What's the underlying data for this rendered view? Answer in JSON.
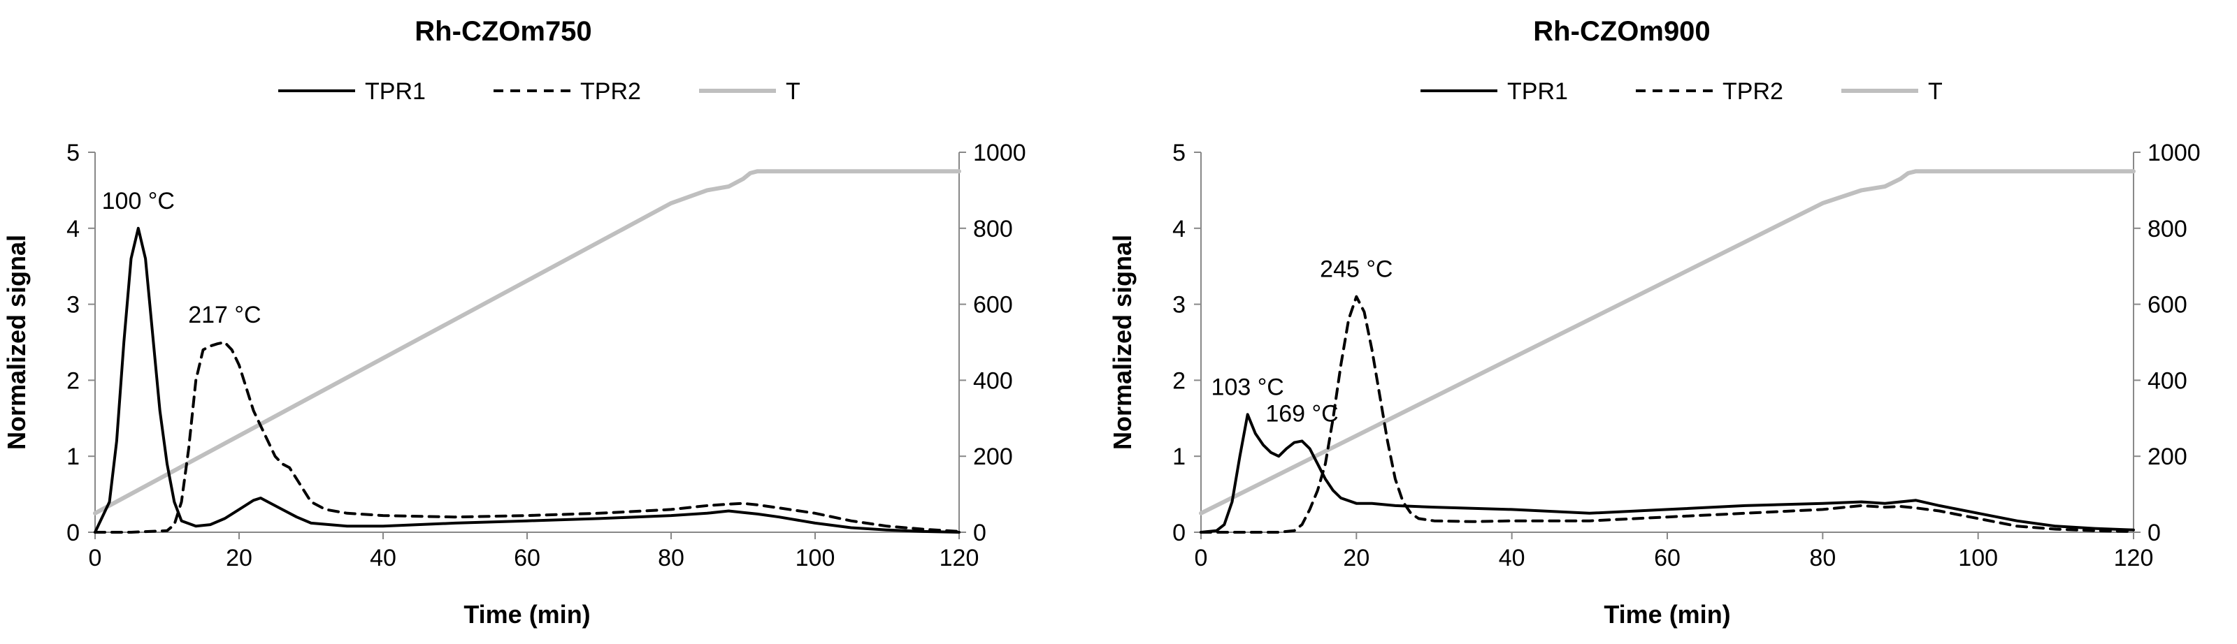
{
  "chart_data": [
    {
      "type": "line",
      "title": "Rh-CZOm750",
      "xlabel": "Time (min)",
      "ylabel": "Normalized signal",
      "y2label": "",
      "xlim": [
        0,
        120
      ],
      "ylim": [
        0,
        5
      ],
      "y2lim": [
        0,
        1000
      ],
      "xticks": [
        "0",
        "20",
        "40",
        "60",
        "80",
        "100",
        "120"
      ],
      "yticks": [
        "0",
        "1",
        "2",
        "3",
        "4",
        "5"
      ],
      "y2ticks": [
        "0",
        "200",
        "400",
        "600",
        "800",
        "1000"
      ],
      "legend": {
        "position": "top",
        "entries": [
          "TPR1",
          "TPR2",
          "T"
        ]
      },
      "series": [
        {
          "name": "TPR1",
          "axis": "left",
          "style": "solid",
          "color": "#000000",
          "x": [
            0,
            2,
            3,
            4,
            5,
            6,
            7,
            8,
            9,
            10,
            11,
            12,
            14,
            16,
            18,
            20,
            22,
            23,
            24,
            26,
            28,
            30,
            35,
            40,
            50,
            60,
            70,
            80,
            85,
            88,
            90,
            92,
            95,
            100,
            105,
            110,
            115,
            120
          ],
          "values": [
            0.0,
            0.4,
            1.2,
            2.5,
            3.6,
            4.0,
            3.6,
            2.6,
            1.6,
            0.9,
            0.4,
            0.15,
            0.08,
            0.1,
            0.18,
            0.3,
            0.42,
            0.45,
            0.4,
            0.3,
            0.2,
            0.12,
            0.08,
            0.08,
            0.12,
            0.15,
            0.18,
            0.22,
            0.25,
            0.28,
            0.26,
            0.24,
            0.2,
            0.12,
            0.06,
            0.03,
            0.01,
            0.0
          ]
        },
        {
          "name": "TPR2",
          "axis": "left",
          "style": "dashed",
          "color": "#000000",
          "x": [
            0,
            5,
            10,
            11,
            12,
            13,
            14,
            15,
            16,
            17,
            18,
            19,
            20,
            21,
            22,
            23,
            24,
            25,
            26,
            27,
            28,
            29,
            30,
            32,
            35,
            40,
            50,
            60,
            70,
            80,
            85,
            88,
            90,
            92,
            95,
            100,
            105,
            110,
            115,
            120
          ],
          "values": [
            0.0,
            0.0,
            0.02,
            0.1,
            0.4,
            1.1,
            2.0,
            2.4,
            2.45,
            2.48,
            2.5,
            2.4,
            2.2,
            1.9,
            1.6,
            1.4,
            1.2,
            1.0,
            0.9,
            0.85,
            0.7,
            0.55,
            0.4,
            0.3,
            0.25,
            0.22,
            0.2,
            0.22,
            0.25,
            0.3,
            0.35,
            0.37,
            0.38,
            0.36,
            0.32,
            0.25,
            0.15,
            0.08,
            0.04,
            0.01
          ]
        },
        {
          "name": "T",
          "axis": "right",
          "style": "solid",
          "color": "#BFBFBF",
          "x": [
            0,
            10,
            20,
            30,
            40,
            50,
            60,
            70,
            80,
            85,
            88,
            90,
            91,
            92,
            95,
            100,
            110,
            120
          ],
          "values": [
            50,
            152,
            254,
            356,
            458,
            560,
            662,
            764,
            866,
            900,
            910,
            930,
            945,
            950,
            950,
            950,
            950,
            950
          ]
        }
      ],
      "annotations": [
        {
          "text": "100 °C",
          "x": 6,
          "y": 4.0
        },
        {
          "text": "217 °C",
          "x": 18,
          "y": 2.5
        }
      ]
    },
    {
      "type": "line",
      "title": "Rh-CZOm900",
      "xlabel": "Time (min)",
      "ylabel": "Normalized signal",
      "y2label": "",
      "xlim": [
        0,
        120
      ],
      "ylim": [
        0,
        5
      ],
      "y2lim": [
        0,
        1000
      ],
      "xticks": [
        "0",
        "20",
        "40",
        "60",
        "80",
        "100",
        "120"
      ],
      "yticks": [
        "0",
        "1",
        "2",
        "3",
        "4",
        "5"
      ],
      "y2ticks": [
        "0",
        "200",
        "400",
        "600",
        "800",
        "1000"
      ],
      "legend": {
        "position": "top",
        "entries": [
          "TPR1",
          "TPR2",
          "T"
        ]
      },
      "series": [
        {
          "name": "TPR1",
          "axis": "left",
          "style": "solid",
          "color": "#000000",
          "x": [
            0,
            2,
            3,
            4,
            5,
            6,
            7,
            8,
            9,
            10,
            11,
            12,
            13,
            14,
            15,
            16,
            17,
            18,
            20,
            22,
            25,
            30,
            40,
            50,
            60,
            70,
            80,
            85,
            88,
            90,
            92,
            95,
            100,
            105,
            110,
            115,
            120
          ],
          "values": [
            0.0,
            0.02,
            0.1,
            0.4,
            1.0,
            1.55,
            1.3,
            1.15,
            1.05,
            1.0,
            1.1,
            1.18,
            1.2,
            1.1,
            0.9,
            0.7,
            0.55,
            0.45,
            0.38,
            0.38,
            0.35,
            0.33,
            0.3,
            0.25,
            0.3,
            0.35,
            0.38,
            0.4,
            0.38,
            0.4,
            0.42,
            0.35,
            0.25,
            0.15,
            0.08,
            0.05,
            0.03
          ]
        },
        {
          "name": "TPR2",
          "axis": "left",
          "style": "dashed",
          "color": "#000000",
          "x": [
            0,
            10,
            12,
            13,
            14,
            15,
            16,
            17,
            18,
            19,
            20,
            21,
            22,
            23,
            24,
            25,
            26,
            27,
            28,
            30,
            35,
            40,
            50,
            60,
            70,
            80,
            85,
            88,
            90,
            92,
            95,
            100,
            105,
            110,
            115,
            120
          ],
          "values": [
            0.0,
            0.0,
            0.02,
            0.1,
            0.3,
            0.55,
            0.9,
            1.5,
            2.2,
            2.8,
            3.1,
            2.9,
            2.4,
            1.8,
            1.2,
            0.7,
            0.4,
            0.25,
            0.18,
            0.15,
            0.14,
            0.15,
            0.15,
            0.2,
            0.25,
            0.3,
            0.35,
            0.33,
            0.34,
            0.32,
            0.28,
            0.18,
            0.08,
            0.04,
            0.02,
            0.01
          ]
        },
        {
          "name": "T",
          "axis": "right",
          "style": "solid",
          "color": "#BFBFBF",
          "x": [
            0,
            10,
            20,
            30,
            40,
            50,
            60,
            70,
            80,
            85,
            88,
            90,
            91,
            92,
            95,
            100,
            110,
            120
          ],
          "values": [
            50,
            152,
            254,
            356,
            458,
            560,
            662,
            764,
            866,
            900,
            910,
            930,
            945,
            950,
            950,
            950,
            950,
            950
          ]
        }
      ],
      "annotations": [
        {
          "text": "103 °C",
          "x": 6,
          "y": 1.55
        },
        {
          "text": "169 °C",
          "x": 13,
          "y": 1.2
        },
        {
          "text": "245 °C",
          "x": 20,
          "y": 3.1
        }
      ]
    }
  ]
}
